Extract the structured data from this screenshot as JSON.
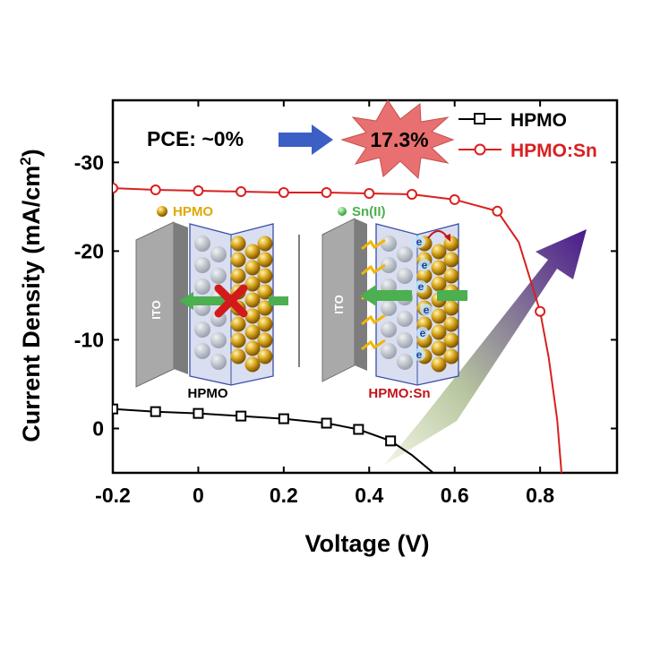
{
  "chart_data": {
    "type": "line",
    "xlabel": "Voltage (V)",
    "ylabel_main": "Current Density (mA/cm",
    "ylabel_sup": "2",
    "ylabel_close": ")",
    "xlim": [
      -0.2,
      0.98
    ],
    "ylim": [
      5,
      -37
    ],
    "x_ticks": [
      -0.2,
      0,
      0.2,
      0.4,
      0.6,
      0.8
    ],
    "x_tick_labels": [
      "-0.2",
      "0",
      "0.2",
      "0.4",
      "0.6",
      "0.8"
    ],
    "y_ticks": [
      0,
      -10,
      -20,
      -30
    ],
    "y_tick_labels": [
      "0",
      "-10",
      "-20",
      "-30"
    ],
    "series": [
      {
        "name": "HPMO",
        "color": "#000000",
        "marker": "square",
        "points": [
          [
            -0.2,
            -2.2
          ],
          [
            -0.1,
            -1.9
          ],
          [
            0,
            -1.7
          ],
          [
            0.1,
            -1.4
          ],
          [
            0.2,
            -1.1
          ],
          [
            0.3,
            -0.6
          ],
          [
            0.375,
            0.1
          ],
          [
            0.45,
            1.4
          ]
        ],
        "line": [
          [
            -0.2,
            -2.2
          ],
          [
            -0.1,
            -1.9
          ],
          [
            0,
            -1.7
          ],
          [
            0.1,
            -1.4
          ],
          [
            0.2,
            -1.1
          ],
          [
            0.3,
            -0.6
          ],
          [
            0.375,
            0.1
          ],
          [
            0.45,
            1.4
          ],
          [
            0.5,
            3.0
          ],
          [
            0.55,
            5.0
          ]
        ]
      },
      {
        "name": "HPMO:Sn",
        "color": "#d9201f",
        "marker": "circle",
        "points": [
          [
            -0.2,
            -27.1
          ],
          [
            -0.1,
            -26.9
          ],
          [
            0,
            -26.8
          ],
          [
            0.1,
            -26.7
          ],
          [
            0.2,
            -26.6
          ],
          [
            0.3,
            -26.6
          ],
          [
            0.4,
            -26.5
          ],
          [
            0.5,
            -26.4
          ],
          [
            0.6,
            -25.8
          ],
          [
            0.7,
            -24.5
          ],
          [
            0.8,
            -13.2
          ]
        ],
        "line": [
          [
            -0.2,
            -27.1
          ],
          [
            -0.1,
            -26.9
          ],
          [
            0,
            -26.8
          ],
          [
            0.1,
            -26.7
          ],
          [
            0.2,
            -26.6
          ],
          [
            0.3,
            -26.6
          ],
          [
            0.4,
            -26.5
          ],
          [
            0.5,
            -26.4
          ],
          [
            0.6,
            -25.8
          ],
          [
            0.7,
            -24.5
          ],
          [
            0.75,
            -21.0
          ],
          [
            0.8,
            -13.2
          ],
          [
            0.82,
            -8.0
          ],
          [
            0.84,
            -1.0
          ],
          [
            0.85,
            5.0
          ]
        ]
      }
    ],
    "annotations": {
      "pce_text": "PCE: ~0%",
      "burst_value": "17.3%"
    },
    "inset": {
      "legend_hpmo": "HPMO",
      "legend_sn": "Sn(II)",
      "ito_label": "ITO",
      "left_caption": "HPMO",
      "right_caption": "HPMO:Sn",
      "electron_label": "e",
      "hpmo_color": "#e0a800",
      "sn_color": "#4caf50",
      "caption_right_color": "#c0141a"
    }
  }
}
